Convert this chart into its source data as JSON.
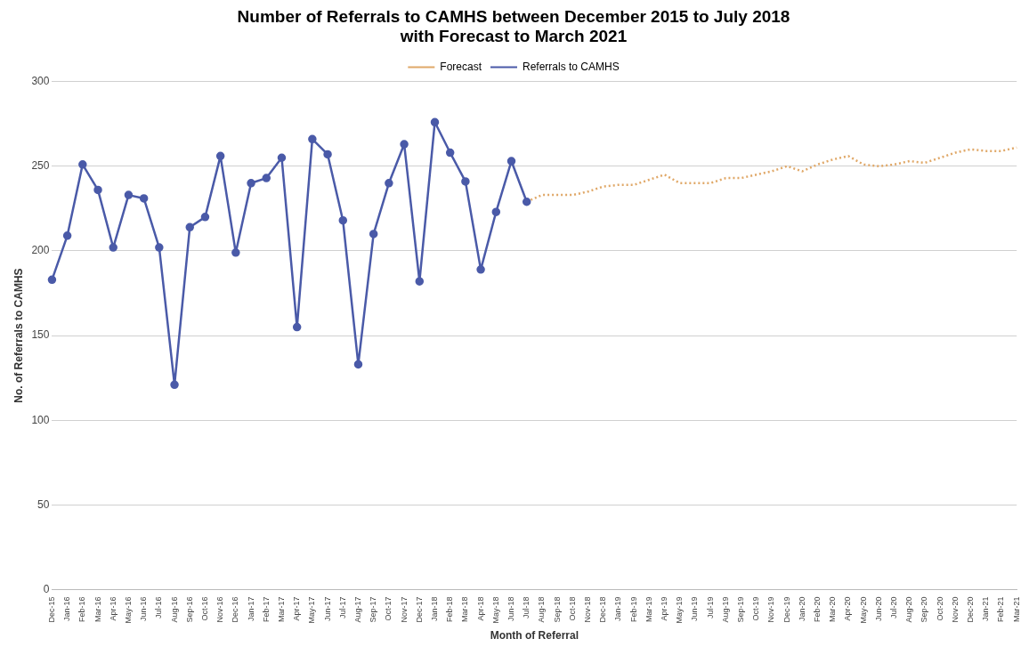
{
  "chart_data": {
    "type": "line",
    "title": "Number of Referrals to CAMHS between December 2015 to July 2018\nwith Forecast to March 2021",
    "xlabel": "Month of Referral",
    "ylabel": "No. of Referrals to CAMHS",
    "categories": [
      "Dec-15",
      "Jan-16",
      "Feb-16",
      "Mar-16",
      "Apr-16",
      "May-16",
      "Jun-16",
      "Jul-16",
      "Aug-16",
      "Sep-16",
      "Oct-16",
      "Nov-16",
      "Dec-16",
      "Jan-17",
      "Feb-17",
      "Mar-17",
      "Apr-17",
      "May-17",
      "Jun-17",
      "Jul-17",
      "Aug-17",
      "Sep-17",
      "Oct-17",
      "Nov-17",
      "Dec-17",
      "Jan-18",
      "Feb-18",
      "Mar-18",
      "Apr-18",
      "May-18",
      "Jun-18",
      "Jul-18",
      "Aug-18",
      "Sep-18",
      "Oct-18",
      "Nov-18",
      "Dec-18",
      "Jan-19",
      "Feb-19",
      "Mar-19",
      "Apr-19",
      "May-19",
      "Jun-19",
      "Jul-19",
      "Aug-19",
      "Sep-19",
      "Oct-19",
      "Nov-19",
      "Dec-19",
      "Jan-20",
      "Feb-20",
      "Mar-20",
      "Apr-20",
      "May-20",
      "Jun-20",
      "Jul-20",
      "Aug-20",
      "Sep-20",
      "Oct-20",
      "Nov-20",
      "Dec-20",
      "Jan-21",
      "Feb-21",
      "Mar-21"
    ],
    "series": [
      {
        "name": "Forecast",
        "color": "#e0a868",
        "marker": "none",
        "line_style": "dotted",
        "values": [
          null,
          null,
          null,
          null,
          null,
          null,
          null,
          null,
          null,
          null,
          null,
          null,
          null,
          null,
          null,
          null,
          null,
          null,
          null,
          null,
          null,
          null,
          null,
          null,
          null,
          null,
          null,
          null,
          null,
          null,
          null,
          229,
          233,
          233,
          233,
          235,
          238,
          239,
          239,
          242,
          245,
          240,
          240,
          240,
          243,
          243,
          245,
          247,
          250,
          247,
          251,
          254,
          256,
          251,
          250,
          251,
          253,
          252,
          255,
          258,
          260,
          259,
          259,
          261
        ]
      },
      {
        "name": "Referrals to CAMHS",
        "color": "#4a5aa8",
        "marker": "circle",
        "line_style": "solid",
        "values": [
          183,
          209,
          251,
          236,
          202,
          233,
          231,
          202,
          121,
          214,
          220,
          256,
          199,
          240,
          243,
          255,
          155,
          266,
          257,
          218,
          133,
          210,
          240,
          263,
          182,
          276,
          258,
          241,
          189,
          223,
          253,
          229,
          null,
          null,
          null,
          null,
          null,
          null,
          null,
          null,
          null,
          null,
          null,
          null,
          null,
          null,
          null,
          null,
          null,
          null,
          null,
          null,
          null,
          null,
          null,
          null,
          null,
          null,
          null,
          null,
          null,
          null,
          null,
          null
        ]
      }
    ],
    "ylim": [
      0,
      300
    ],
    "yticks": [
      0,
      50,
      100,
      150,
      200,
      250,
      300
    ],
    "grid": "y",
    "legend": "top"
  }
}
